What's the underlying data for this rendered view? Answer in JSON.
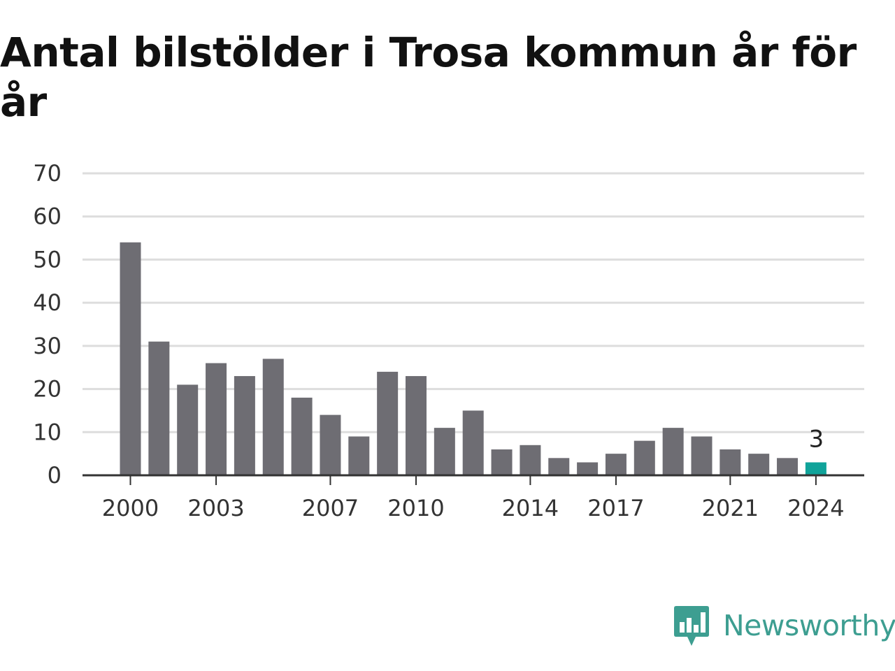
{
  "title": "Antal bilstölder i Trosa kommun år för år",
  "brand": {
    "name": "Newsworthy",
    "icon": "newsworthy-logo-icon",
    "color": "#3d9e91"
  },
  "colors": {
    "bar": "#6e6d73",
    "highlight": "#10a39a",
    "grid": "#dddddd",
    "axis": "#333333"
  },
  "chart_data": {
    "type": "bar",
    "title": "Antal bilstölder i Trosa kommun år för år",
    "xlabel": "",
    "ylabel": "",
    "categories": [
      2000,
      2001,
      2002,
      2003,
      2004,
      2005,
      2006,
      2007,
      2008,
      2009,
      2010,
      2011,
      2012,
      2013,
      2014,
      2015,
      2016,
      2017,
      2018,
      2019,
      2020,
      2021,
      2022,
      2023,
      2024
    ],
    "values": [
      54,
      31,
      21,
      26,
      23,
      27,
      18,
      14,
      9,
      24,
      23,
      11,
      15,
      6,
      7,
      4,
      3,
      5,
      8,
      11,
      9,
      6,
      5,
      4,
      3
    ],
    "x_tick_labels": [
      "2000",
      "2003",
      "2007",
      "2010",
      "2014",
      "2017",
      "2021",
      "2024"
    ],
    "y_ticks": [
      "0",
      "10",
      "20",
      "30",
      "40",
      "50",
      "60",
      "70"
    ],
    "ylim": [
      0,
      70
    ],
    "grid": true,
    "highlight": {
      "category": 2024,
      "label": "3"
    }
  }
}
